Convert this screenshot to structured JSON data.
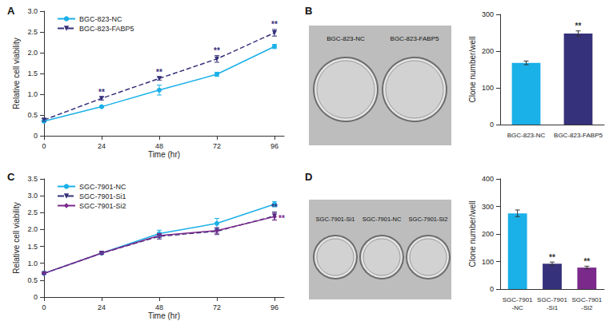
{
  "chart_data": [
    {
      "type": "line",
      "title": "A",
      "x_label": "Time (hr)",
      "y_label": "Relative cell viability",
      "x": [
        0,
        24,
        48,
        72,
        96
      ],
      "xlim": [
        0,
        100
      ],
      "xticks": [
        0,
        24,
        48,
        72,
        96
      ],
      "ylim": [
        0,
        3
      ],
      "yticks": [
        0,
        0.5,
        {
          "value": 1,
          "label": "1.0"
        },
        1.5,
        {
          "value": 2,
          "label": "2.0"
        },
        2.5,
        {
          "value": 3,
          "label": "3.0"
        }
      ],
      "grid": false,
      "legend": "upper left",
      "series": [
        {
          "name": "BGC-823-NC",
          "color": "#1ab0e8",
          "marker": "circle",
          "line_style": "solid",
          "values": [
            0.35,
            0.7,
            1.1,
            1.48,
            2.15
          ],
          "errors": [
            0.02,
            0.02,
            0.12,
            0.05,
            0.05
          ],
          "significance": [
            null,
            null,
            null,
            null,
            null
          ]
        },
        {
          "name": "BGC-823-FABP5",
          "color": "#35317a",
          "marker": "triangle_down",
          "line_style": "dashed",
          "values": [
            0.38,
            0.9,
            1.38,
            1.85,
            2.48
          ],
          "errors": [
            0.03,
            0.04,
            0.04,
            0.08,
            0.08
          ],
          "significance": [
            null,
            "**",
            "**",
            "**",
            "**"
          ]
        }
      ]
    },
    {
      "type": "bar",
      "title": "B",
      "y_label": "Clone number/well",
      "annotations": [
        "BGC-823-NC",
        "BGC-823-FABP5"
      ],
      "categories": [
        "BGC-823-NC",
        "BGC-823-FABP5"
      ],
      "values": [
        168,
        248
      ],
      "errors": [
        5,
        7
      ],
      "significance": [
        null,
        "**"
      ],
      "colors": [
        "#1ab0e8",
        "#35317a"
      ],
      "ylim": [
        0,
        300
      ],
      "yticks": [
        0,
        100,
        200,
        300
      ],
      "grid": false
    },
    {
      "type": "line",
      "title": "C",
      "x_label": "Time (hr)",
      "y_label": "Relative cell viability",
      "x": [
        0,
        24,
        48,
        72,
        96
      ],
      "xlim": [
        0,
        100
      ],
      "xticks": [
        0,
        24,
        48,
        72,
        96
      ],
      "ylim": [
        0,
        3.5
      ],
      "yticks": [
        0,
        0.5,
        {
          "value": 1,
          "label": "1.0"
        },
        1.5,
        {
          "value": 2,
          "label": "2.0"
        },
        2.5,
        {
          "value": 3,
          "label": "3.0"
        },
        3.5
      ],
      "grid": false,
      "legend": "upper left",
      "series": [
        {
          "name": "SGC-7901-NC",
          "color": "#1ab0e8",
          "marker": "circle",
          "line_style": "solid",
          "values": [
            0.7,
            1.3,
            1.88,
            2.18,
            2.75
          ],
          "errors": [
            0.02,
            0.03,
            0.1,
            0.15,
            0.08
          ],
          "significance": [
            null,
            null,
            null,
            null,
            null
          ]
        },
        {
          "name": "SGC-7901-Si1",
          "color": "#35317a",
          "marker": "triangle_down",
          "line_style": "dashed",
          "values": [
            0.7,
            1.3,
            1.8,
            1.95,
            2.4
          ],
          "errors": [
            0.02,
            0.03,
            0.08,
            0.1,
            0.12
          ],
          "significance": [
            null,
            null,
            null,
            null,
            "**"
          ]
        },
        {
          "name": "SGC-7901-Si2",
          "color": "#7b2a8c",
          "marker": "diamond",
          "line_style": "solid",
          "values": [
            0.7,
            1.3,
            1.82,
            1.97,
            2.38
          ],
          "errors": [
            0.02,
            0.03,
            0.06,
            0.08,
            0.1
          ],
          "significance": [
            null,
            null,
            null,
            null,
            "**"
          ]
        }
      ]
    },
    {
      "type": "bar",
      "title": "D",
      "y_label": "Clone number/well",
      "annotations": [
        "SGC-7901-Si1",
        "SGC-7901-NC",
        "SGC-7901-Si2"
      ],
      "categories": [
        "SGC-7901\n-NC",
        "SGC-7901\n-Si1",
        "SGC-7901\n-Si2"
      ],
      "values": [
        275,
        92,
        78
      ],
      "errors": [
        12,
        6,
        5
      ],
      "significance": [
        null,
        "**",
        "**"
      ],
      "colors": [
        "#1ab0e8",
        "#35317a",
        "#7b2a8c"
      ],
      "ylim": [
        0,
        400
      ],
      "yticks": [
        0,
        100,
        200,
        300,
        400
      ],
      "grid": false
    }
  ]
}
